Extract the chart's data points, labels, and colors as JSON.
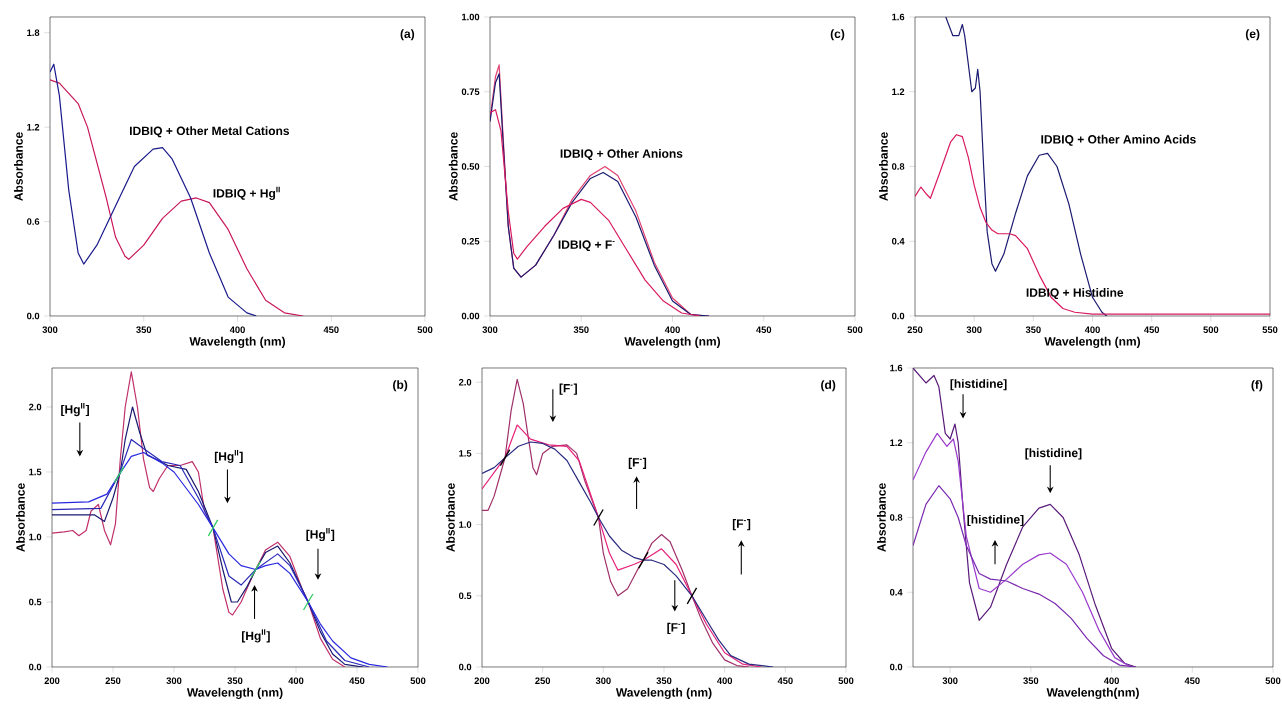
{
  "chart_data": [
    {
      "type": "line",
      "xlabel": "Wavelength (nm)",
      "ylabel": "Absorbance",
      "xlim": [
        300,
        500
      ],
      "ylim": [
        0,
        1.9
      ],
      "xticks": [
        300,
        350,
        400,
        450,
        500
      ],
      "yticks": [
        {
          "value": 0,
          "label": "0.0"
        },
        0.6,
        1.2,
        1.8
      ],
      "series": [
        {
          "color": "#c8185a",
          "x": [
            300,
            305,
            315,
            320,
            330,
            335,
            340,
            342,
            350,
            360,
            370,
            378,
            385,
            395,
            405,
            415,
            425,
            435
          ],
          "values": [
            1.5,
            1.48,
            1.35,
            1.2,
            0.75,
            0.5,
            0.38,
            0.36,
            0.45,
            0.62,
            0.73,
            0.75,
            0.72,
            0.55,
            0.3,
            0.1,
            0.02,
            0
          ]
        },
        {
          "color": "#1a1a8c",
          "x": [
            300,
            302,
            305,
            310,
            315,
            318,
            325,
            335,
            345,
            355,
            360,
            365,
            375,
            385,
            395,
            405,
            410
          ],
          "values": [
            1.55,
            1.6,
            1.4,
            0.8,
            0.4,
            0.33,
            0.45,
            0.7,
            0.95,
            1.06,
            1.07,
            1.0,
            0.75,
            0.4,
            0.12,
            0.02,
            0
          ]
        }
      ],
      "annotations": [
        "(a)",
        "IDBIQ + Other Metal Cations",
        "IDBIQ + Hg$^{II}$"
      ]
    },
    {
      "type": "line",
      "xlabel": "Wavelength (nm)",
      "ylabel": "Absorbance",
      "xlim": [
        300,
        500
      ],
      "ylim": [
        0,
        1
      ],
      "xticks": [
        300,
        350,
        400,
        450,
        500
      ],
      "yticks": [
        {
          "value": 0,
          "label": "0.00"
        },
        0.25,
        {
          "value": 0.5,
          "label": "0.50"
        },
        0.75,
        {
          "value": 1,
          "label": "1.00"
        }
      ],
      "series": [
        {
          "color": "#e04070",
          "x": [
            300,
            303,
            305,
            307,
            310,
            313,
            317,
            325,
            335,
            345,
            355,
            363,
            370,
            380,
            390,
            400,
            410,
            420
          ],
          "values": [
            0.66,
            0.8,
            0.84,
            0.62,
            0.3,
            0.16,
            0.13,
            0.17,
            0.27,
            0.39,
            0.47,
            0.5,
            0.47,
            0.35,
            0.18,
            0.06,
            0.005,
            0
          ]
        },
        {
          "color": "#1a1a70",
          "x": [
            300,
            303,
            305,
            307,
            310,
            313,
            317,
            325,
            335,
            345,
            355,
            362,
            370,
            380,
            390,
            400,
            410,
            420
          ],
          "values": [
            0.65,
            0.78,
            0.81,
            0.6,
            0.3,
            0.16,
            0.13,
            0.17,
            0.27,
            0.38,
            0.46,
            0.48,
            0.45,
            0.33,
            0.17,
            0.05,
            0.005,
            0
          ]
        },
        {
          "color": "#d81b60",
          "x": [
            300,
            303,
            306,
            310,
            313,
            315,
            320,
            330,
            340,
            350,
            355,
            365,
            375,
            385,
            395,
            405,
            415
          ],
          "values": [
            0.68,
            0.69,
            0.62,
            0.35,
            0.21,
            0.19,
            0.23,
            0.3,
            0.36,
            0.39,
            0.38,
            0.32,
            0.22,
            0.12,
            0.05,
            0.01,
            0
          ]
        }
      ],
      "annotations": [
        "(c)",
        "IDBIQ + Other Anions",
        "IDBIQ + F$^{-}$"
      ]
    },
    {
      "type": "line",
      "xlabel": "Wavelength (nm)",
      "ylabel": "Absorbance",
      "xlim": [
        250,
        550
      ],
      "ylim": [
        0,
        1.6
      ],
      "xticks": [
        250,
        300,
        350,
        400,
        450,
        500,
        550
      ],
      "yticks": [
        {
          "value": 0,
          "label": "0.0"
        },
        0.4,
        0.8,
        1.2,
        1.6
      ],
      "series": [
        {
          "color": "#1a1a70",
          "x": [
            276,
            282,
            287,
            290,
            292,
            298,
            301,
            303,
            305,
            308,
            311,
            315,
            318,
            325,
            335,
            345,
            355,
            362,
            370,
            380,
            390,
            400,
            408,
            412
          ],
          "values": [
            1.6,
            1.5,
            1.5,
            1.56,
            1.5,
            1.2,
            1.22,
            1.32,
            1.2,
            0.8,
            0.45,
            0.28,
            0.24,
            0.33,
            0.55,
            0.75,
            0.86,
            0.87,
            0.8,
            0.6,
            0.33,
            0.1,
            0.02,
            0
          ]
        },
        {
          "color": "#d81b60",
          "x": [
            250,
            255,
            260,
            263,
            270,
            280,
            285,
            290,
            295,
            300,
            305,
            310,
            315,
            320,
            330,
            335,
            345,
            355,
            365,
            375,
            385,
            400,
            550
          ],
          "values": [
            0.64,
            0.69,
            0.65,
            0.63,
            0.75,
            0.93,
            0.97,
            0.96,
            0.85,
            0.7,
            0.58,
            0.5,
            0.46,
            0.44,
            0.44,
            0.43,
            0.36,
            0.22,
            0.1,
            0.04,
            0.02,
            0.01,
            0.01
          ]
        }
      ],
      "annotations": [
        "(e)",
        "IDBIQ + Other Amino Acids",
        "IDBIQ + Histidine"
      ]
    },
    {
      "type": "line",
      "xlabel": "Wavelength (nm)",
      "ylabel": "Absorbance",
      "xlim": [
        200,
        500
      ],
      "ylim": [
        0,
        2.3
      ],
      "xticks": [
        200,
        250,
        300,
        350,
        400,
        450,
        500
      ],
      "yticks": [
        {
          "value": 0,
          "label": "0.0"
        },
        0.5,
        {
          "value": 1,
          "label": "1.0"
        },
        1.5,
        {
          "value": 2,
          "label": "2.0"
        }
      ],
      "series": [
        {
          "color": "#c0306a",
          "x": [
            200,
            210,
            217,
            222,
            228,
            232,
            238,
            243,
            248,
            252,
            256,
            260,
            265,
            270,
            275,
            280,
            283,
            288,
            295,
            305,
            315,
            320,
            325,
            332,
            340,
            345,
            348,
            355,
            362,
            367,
            375,
            385,
            395,
            405,
            410,
            420,
            430,
            440
          ],
          "values": [
            1.03,
            1.04,
            1.05,
            1.01,
            1.05,
            1.2,
            1.25,
            1.05,
            0.94,
            1.1,
            1.6,
            2.0,
            2.27,
            2.0,
            1.6,
            1.38,
            1.35,
            1.45,
            1.55,
            1.55,
            1.58,
            1.5,
            1.2,
            1.07,
            0.6,
            0.42,
            0.4,
            0.5,
            0.65,
            0.75,
            0.9,
            0.96,
            0.85,
            0.6,
            0.5,
            0.22,
            0.06,
            0
          ]
        },
        {
          "color": "#1a1a70",
          "x": [
            200,
            235,
            243,
            250,
            256,
            260,
            266,
            272,
            278,
            285,
            295,
            310,
            320,
            332,
            340,
            347,
            352,
            360,
            367,
            375,
            385,
            395,
            410,
            420,
            430,
            440,
            455
          ],
          "values": [
            1.17,
            1.17,
            1.12,
            1.3,
            1.5,
            1.75,
            2.0,
            1.8,
            1.63,
            1.6,
            1.55,
            1.52,
            1.35,
            1.07,
            0.75,
            0.5,
            0.5,
            0.62,
            0.75,
            0.88,
            0.93,
            0.8,
            0.5,
            0.27,
            0.1,
            0.02,
            0
          ]
        },
        {
          "color": "#2a2ab8",
          "x": [
            200,
            240,
            255,
            265,
            275,
            290,
            305,
            320,
            332,
            345,
            355,
            367,
            385,
            395,
            410,
            425,
            440,
            460
          ],
          "values": [
            1.21,
            1.22,
            1.48,
            1.75,
            1.68,
            1.58,
            1.55,
            1.3,
            1.07,
            0.7,
            0.63,
            0.75,
            0.87,
            0.78,
            0.5,
            0.2,
            0.05,
            0
          ]
        },
        {
          "color": "#2828e0",
          "x": [
            200,
            230,
            245,
            255,
            265,
            275,
            290,
            300,
            320,
            332,
            345,
            355,
            367,
            375,
            385,
            395,
            410,
            420,
            430,
            445,
            460,
            475
          ],
          "values": [
            1.26,
            1.27,
            1.33,
            1.48,
            1.62,
            1.65,
            1.57,
            1.5,
            1.25,
            1.07,
            0.87,
            0.78,
            0.75,
            0.78,
            0.8,
            0.72,
            0.5,
            0.33,
            0.2,
            0.07,
            0.02,
            0
          ]
        }
      ],
      "annotations": [
        "(b)",
        "[Hg$^{II}$]",
        "[Hg$^{II}$]",
        "[Hg$^{II}$]",
        "[Hg$^{II}$]"
      ]
    },
    {
      "type": "line",
      "xlabel": "Wavelength (nm)",
      "ylabel": "Absorbance",
      "xlim": [
        200,
        500
      ],
      "ylim": [
        0,
        2.1
      ],
      "xticks": [
        200,
        250,
        300,
        350,
        400,
        450,
        500
      ],
      "yticks": [
        {
          "value": 0,
          "label": "0.0"
        },
        0.5,
        {
          "value": 1,
          "label": "1.0"
        },
        1.5,
        {
          "value": 2,
          "label": "2.0"
        }
      ],
      "series": [
        {
          "color": "#a0306a",
          "x": [
            200,
            205,
            210,
            215,
            219,
            224,
            229,
            234,
            238,
            242,
            245,
            250,
            258,
            270,
            278,
            285,
            296,
            300,
            306,
            312,
            320,
            328,
            333,
            340,
            348,
            355,
            365,
            373,
            380,
            390,
            400,
            410,
            420
          ],
          "values": [
            1.1,
            1.1,
            1.2,
            1.35,
            1.47,
            1.8,
            2.02,
            1.85,
            1.62,
            1.4,
            1.35,
            1.5,
            1.55,
            1.56,
            1.5,
            1.3,
            1.05,
            0.8,
            0.6,
            0.5,
            0.55,
            0.68,
            0.75,
            0.87,
            0.93,
            0.88,
            0.68,
            0.5,
            0.35,
            0.17,
            0.05,
            0.01,
            0
          ]
        },
        {
          "color": "#e8207a",
          "x": [
            200,
            219,
            229,
            240,
            255,
            270,
            280,
            296,
            305,
            312,
            325,
            333,
            348,
            360,
            373,
            385,
            400,
            415,
            430
          ],
          "values": [
            1.25,
            1.47,
            1.7,
            1.6,
            1.56,
            1.55,
            1.45,
            1.05,
            0.8,
            0.68,
            0.72,
            0.75,
            0.83,
            0.72,
            0.5,
            0.3,
            0.1,
            0.02,
            0
          ]
        },
        {
          "color": "#2a2a80",
          "x": [
            200,
            210,
            219,
            230,
            240,
            250,
            260,
            270,
            280,
            290,
            296,
            305,
            315,
            325,
            333,
            340,
            350,
            360,
            373,
            385,
            395,
            405,
            420,
            440
          ],
          "values": [
            1.36,
            1.4,
            1.47,
            1.55,
            1.58,
            1.57,
            1.53,
            1.45,
            1.3,
            1.15,
            1.05,
            0.92,
            0.82,
            0.77,
            0.75,
            0.75,
            0.72,
            0.64,
            0.5,
            0.33,
            0.19,
            0.08,
            0.02,
            0
          ]
        }
      ],
      "annotations": [
        "(d)",
        "[F$^{-}$]",
        "[F$^{-}$]",
        "[F$^{-}$]",
        "[F$^{-}$]"
      ]
    },
    {
      "type": "line",
      "xlabel": "Wavelength(nm)",
      "ylabel": "Absorbance",
      "xlim": [
        277,
        500
      ],
      "ylim": [
        0,
        1.6
      ],
      "xticks": [
        300,
        350,
        400,
        450,
        500
      ],
      "yticks": [
        {
          "value": 0,
          "label": "0.0"
        },
        0.4,
        0.8,
        1.2,
        1.6
      ],
      "series": [
        {
          "color": "#5a1a7a",
          "x": [
            277,
            285,
            290,
            293,
            297,
            300,
            303,
            305,
            308,
            312,
            318,
            325,
            335,
            345,
            355,
            362,
            370,
            380,
            390,
            400,
            408,
            415
          ],
          "values": [
            1.6,
            1.52,
            1.56,
            1.5,
            1.25,
            1.22,
            1.3,
            1.2,
            0.85,
            0.45,
            0.25,
            0.32,
            0.55,
            0.75,
            0.85,
            0.87,
            0.8,
            0.6,
            0.33,
            0.1,
            0.02,
            0
          ]
        },
        {
          "color": "#9a3acc",
          "x": [
            277,
            285,
            292,
            298,
            302,
            305,
            310,
            318,
            325,
            335,
            345,
            355,
            362,
            372,
            382,
            392,
            402,
            412
          ],
          "values": [
            1.0,
            1.15,
            1.25,
            1.18,
            1.22,
            1.1,
            0.7,
            0.42,
            0.4,
            0.47,
            0.55,
            0.6,
            0.61,
            0.55,
            0.4,
            0.2,
            0.05,
            0
          ]
        },
        {
          "color": "#7a2ab0",
          "x": [
            277,
            285,
            293,
            300,
            305,
            310,
            318,
            325,
            335,
            345,
            355,
            365,
            375,
            385,
            395,
            405,
            415
          ],
          "values": [
            0.65,
            0.87,
            0.97,
            0.9,
            0.8,
            0.65,
            0.5,
            0.47,
            0.46,
            0.42,
            0.39,
            0.34,
            0.26,
            0.15,
            0.06,
            0.01,
            0
          ]
        }
      ],
      "annotations": [
        "(f)",
        "[histidine]",
        "[histidine]",
        "[histidine]"
      ]
    }
  ]
}
